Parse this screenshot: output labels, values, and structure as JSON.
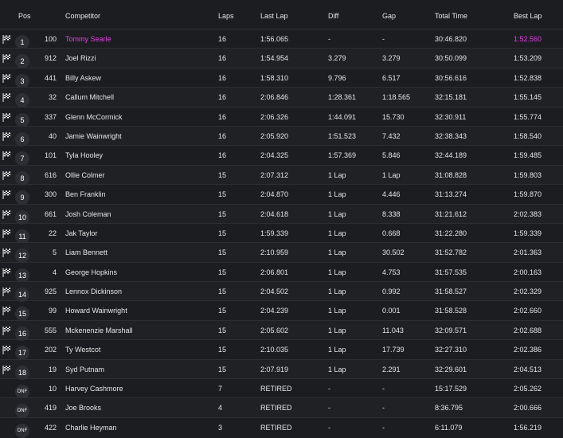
{
  "columns": {
    "pos": "Pos",
    "competitor": "Competitor",
    "laps": "Laps",
    "last_lap": "Last Lap",
    "diff": "Diff",
    "gap": "Gap",
    "total_time": "Total Time",
    "best_lap": "Best Lap"
  },
  "highlight_color": "#e040e0",
  "rows": [
    {
      "pos": "1",
      "num": "100",
      "name": "Tommy Searle",
      "laps": "16",
      "last": "1:56.065",
      "diff": "-",
      "gap": "-",
      "total": "30:46.820",
      "best": "1:52.560",
      "highlight": true,
      "flag": "checkered-flag-icon"
    },
    {
      "pos": "2",
      "num": "912",
      "name": "Joel Rizzi",
      "laps": "16",
      "last": "1:54.954",
      "diff": "3.279",
      "gap": "3.279",
      "total": "30:50.099",
      "best": "1:53.209",
      "flag": "checkered-flag-icon"
    },
    {
      "pos": "3",
      "num": "441",
      "name": "Billy Askew",
      "laps": "16",
      "last": "1:58.310",
      "diff": "9.796",
      "gap": "6.517",
      "total": "30:56.616",
      "best": "1:52.838",
      "flag": "checkered-flag-icon"
    },
    {
      "pos": "4",
      "num": "32",
      "name": "Callum Mitchell",
      "laps": "16",
      "last": "2:06.846",
      "diff": "1:28.361",
      "gap": "1:18.565",
      "total": "32:15.181",
      "best": "1:55.145",
      "flag": "checkered-flag-icon"
    },
    {
      "pos": "5",
      "num": "337",
      "name": "Glenn McCormick",
      "laps": "16",
      "last": "2:06.326",
      "diff": "1:44.091",
      "gap": "15.730",
      "total": "32:30.911",
      "best": "1:55.774",
      "flag": "checkered-flag-icon"
    },
    {
      "pos": "6",
      "num": "40",
      "name": "Jamie Wainwright",
      "laps": "16",
      "last": "2:05.920",
      "diff": "1:51.523",
      "gap": "7.432",
      "total": "32:38.343",
      "best": "1:58.540",
      "flag": "checkered-flag-icon"
    },
    {
      "pos": "7",
      "num": "101",
      "name": "Tyla Hooley",
      "laps": "16",
      "last": "2:04.325",
      "diff": "1:57.369",
      "gap": "5.846",
      "total": "32:44.189",
      "best": "1:59.485",
      "flag": "checkered-flag-icon"
    },
    {
      "pos": "8",
      "num": "616",
      "name": "Ollie Colmer",
      "laps": "15",
      "last": "2:07.312",
      "diff": "1 Lap",
      "gap": "1 Lap",
      "total": "31:08.828",
      "best": "1:59.803",
      "flag": "checkered-flag-icon"
    },
    {
      "pos": "9",
      "num": "300",
      "name": "Ben Franklin",
      "laps": "15",
      "last": "2:04.870",
      "diff": "1 Lap",
      "gap": "4.446",
      "total": "31:13.274",
      "best": "1:59.870",
      "flag": "checkered-flag-icon"
    },
    {
      "pos": "10",
      "num": "661",
      "name": "Josh Coleman",
      "laps": "15",
      "last": "2:04.618",
      "diff": "1 Lap",
      "gap": "8.338",
      "total": "31:21.612",
      "best": "2:02.383",
      "flag": "checkered-flag-icon"
    },
    {
      "pos": "11",
      "num": "22",
      "name": "Jak Taylor",
      "laps": "15",
      "last": "1:59.339",
      "diff": "1 Lap",
      "gap": "0.668",
      "total": "31:22.280",
      "best": "1:59.339",
      "flag": "checkered-flag-icon"
    },
    {
      "pos": "12",
      "num": "5",
      "name": "Liam Bennett",
      "laps": "15",
      "last": "2:10.959",
      "diff": "1 Lap",
      "gap": "30.502",
      "total": "31:52.782",
      "best": "2:01.363",
      "flag": "checkered-flag-icon"
    },
    {
      "pos": "13",
      "num": "4",
      "name": "George Hopkins",
      "laps": "15",
      "last": "2:06.801",
      "diff": "1 Lap",
      "gap": "4.753",
      "total": "31:57.535",
      "best": "2:00.163",
      "flag": "checkered-flag-icon"
    },
    {
      "pos": "14",
      "num": "925",
      "name": "Lennox Dickinson",
      "laps": "15",
      "last": "2:04.502",
      "diff": "1 Lap",
      "gap": "0.992",
      "total": "31:58.527",
      "best": "2:02.329",
      "flag": "checkered-flag-icon"
    },
    {
      "pos": "15",
      "num": "99",
      "name": "Howard Wainwright",
      "laps": "15",
      "last": "2:04.239",
      "diff": "1 Lap",
      "gap": "0.001",
      "total": "31:58.528",
      "best": "2:02.660",
      "flag": "checkered-flag-icon"
    },
    {
      "pos": "16",
      "num": "555",
      "name": "Mckenenzie Marshall",
      "laps": "15",
      "last": "2:05.602",
      "diff": "1 Lap",
      "gap": "11.043",
      "total": "32:09.571",
      "best": "2:02.688",
      "flag": "checkered-flag-icon"
    },
    {
      "pos": "17",
      "num": "202",
      "name": "Ty Westcot",
      "laps": "15",
      "last": "2:10.035",
      "diff": "1 Lap",
      "gap": "17.739",
      "total": "32:27.310",
      "best": "2:02.386",
      "flag": "checkered-flag-icon"
    },
    {
      "pos": "18",
      "num": "19",
      "name": "Syd Putnam",
      "laps": "15",
      "last": "2:07.919",
      "diff": "1 Lap",
      "gap": "2.291",
      "total": "32:29.601",
      "best": "2:04.513",
      "flag": "checkered-flag-icon"
    },
    {
      "pos": "DNF",
      "num": "10",
      "name": "Harvey Cashmore",
      "laps": "7",
      "last": "RETIRED",
      "diff": "-",
      "gap": "-",
      "total": "15:17.529",
      "best": "2:05.262"
    },
    {
      "pos": "DNF",
      "num": "419",
      "name": "Joe Brooks",
      "laps": "4",
      "last": "RETIRED",
      "diff": "-",
      "gap": "-",
      "total": "8:36.795",
      "best": "2:00.666"
    },
    {
      "pos": "DNF",
      "num": "422",
      "name": "Charlie Heyman",
      "laps": "3",
      "last": "RETIRED",
      "diff": "-",
      "gap": "-",
      "total": "6:11.079",
      "best": "1:56.219"
    }
  ]
}
